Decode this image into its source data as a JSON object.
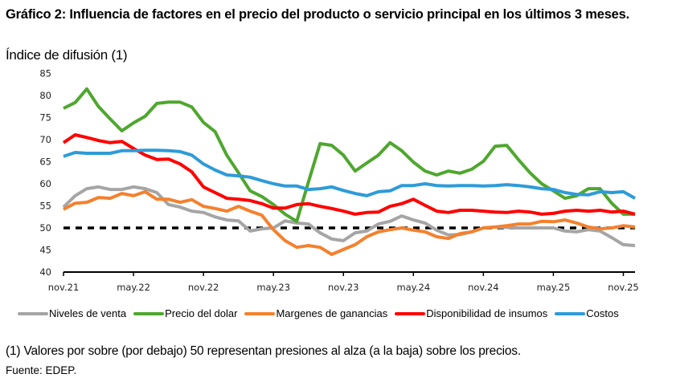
{
  "title": "Gráfico 2: Influencia de factores en el precio del producto o servicio principal en los últimos 3 meses.",
  "note": "(1) Valores por sobre (por debajo) 50 representan presiones al alza (a la baja) sobre los precios.",
  "source": "Fuente: EDEP.",
  "chart_data": {
    "type": "line",
    "title": "Gráfico 2: Influencia de factores en el precio del producto o servicio principal en los últimos 3 meses.",
    "ylabel": "Índice de difusión (1)",
    "xlabel": "",
    "ylim": [
      40,
      85
    ],
    "yticks": [
      40,
      45,
      50,
      55,
      60,
      65,
      70,
      75,
      80,
      85
    ],
    "xtick_labels": [
      "nov.21",
      "may.22",
      "nov.22",
      "may.23",
      "nov.23",
      "may.24",
      "nov.24",
      "may.25",
      "nov.25"
    ],
    "xtick_every_months": 6,
    "x_start": "nov.21",
    "x_end": "dic.25",
    "reference_line": {
      "value": 50,
      "style": "dashed",
      "color": "#000000"
    },
    "grid": false,
    "legend_position": "bottom",
    "series": [
      {
        "name": "Niveles de venta",
        "color": "#A5A5A5",
        "values": [
          54.7,
          57.3,
          58.9,
          59.3,
          58.7,
          58.7,
          59.3,
          58.9,
          58.0,
          55.3,
          54.7,
          53.8,
          53.5,
          52.5,
          51.8,
          51.6,
          49.3,
          49.8,
          50.0,
          51.6,
          51.1,
          50.9,
          48.9,
          47.5,
          47.1,
          48.9,
          49.3,
          50.9,
          51.5,
          52.7,
          51.8,
          51.1,
          49.5,
          48.4,
          48.5,
          49.1,
          50.0,
          50.2,
          50.1,
          50.0,
          50.0,
          50.0,
          50.0,
          49.3,
          49.1,
          49.6,
          49.3,
          47.8,
          46.2,
          46.0
        ]
      },
      {
        "name": "Precio del dolar",
        "color": "#4EA72E",
        "values": [
          77.1,
          78.4,
          81.5,
          77.5,
          74.7,
          72.0,
          73.8,
          75.3,
          78.2,
          78.5,
          78.5,
          77.4,
          73.9,
          71.8,
          66.5,
          62.5,
          58.4,
          57.1,
          55.3,
          53.1,
          51.5,
          60.4,
          69.1,
          68.7,
          66.5,
          62.9,
          64.7,
          66.5,
          69.3,
          67.5,
          64.9,
          62.9,
          62.0,
          62.9,
          62.4,
          63.3,
          65.1,
          68.5,
          68.7,
          65.5,
          62.5,
          60.0,
          58.4,
          56.7,
          57.3,
          58.9,
          58.9,
          55.6,
          53.1,
          53.1
        ]
      },
      {
        "name": "Margenes de ganancias",
        "color": "#F4812E",
        "values": [
          54.2,
          55.6,
          55.8,
          56.9,
          56.7,
          57.8,
          57.3,
          58.2,
          56.5,
          56.5,
          55.8,
          56.4,
          54.9,
          54.4,
          53.8,
          54.9,
          53.8,
          52.9,
          49.6,
          47.1,
          45.6,
          46.0,
          45.6,
          44.0,
          45.1,
          46.2,
          48.0,
          49.1,
          49.6,
          50.0,
          49.5,
          49.1,
          48.0,
          47.6,
          48.7,
          49.1,
          50.0,
          50.2,
          50.5,
          50.9,
          50.9,
          51.5,
          51.4,
          51.8,
          51.1,
          50.2,
          49.8,
          50.0,
          50.5,
          50.2
        ]
      },
      {
        "name": "Disponibilidad de insumos",
        "color": "#FF0000",
        "values": [
          69.3,
          71.1,
          70.5,
          69.8,
          69.3,
          69.6,
          68.0,
          66.5,
          65.5,
          65.6,
          64.5,
          62.7,
          59.3,
          58.0,
          56.7,
          56.5,
          56.2,
          55.5,
          54.5,
          54.5,
          55.3,
          55.5,
          54.9,
          54.4,
          53.8,
          53.1,
          53.5,
          53.6,
          54.9,
          55.5,
          56.5,
          55.1,
          53.8,
          53.5,
          54.0,
          54.0,
          53.8,
          53.6,
          53.5,
          53.8,
          53.6,
          53.1,
          53.3,
          53.8,
          54.0,
          53.8,
          54.0,
          53.6,
          53.8,
          53.1
        ]
      },
      {
        "name": "Costos",
        "color": "#2E9BD8",
        "values": [
          66.2,
          67.1,
          66.9,
          66.9,
          66.9,
          67.5,
          67.5,
          67.6,
          67.6,
          67.5,
          67.3,
          66.5,
          64.5,
          63.1,
          62.0,
          61.8,
          61.5,
          60.7,
          60.0,
          59.5,
          59.5,
          58.7,
          58.9,
          59.3,
          58.5,
          57.8,
          57.3,
          58.2,
          58.4,
          59.6,
          59.6,
          60.0,
          59.6,
          59.5,
          59.6,
          59.6,
          59.5,
          59.6,
          59.8,
          59.6,
          59.3,
          58.9,
          58.7,
          58.0,
          57.6,
          57.5,
          58.2,
          58.0,
          58.2,
          56.7
        ]
      }
    ]
  }
}
